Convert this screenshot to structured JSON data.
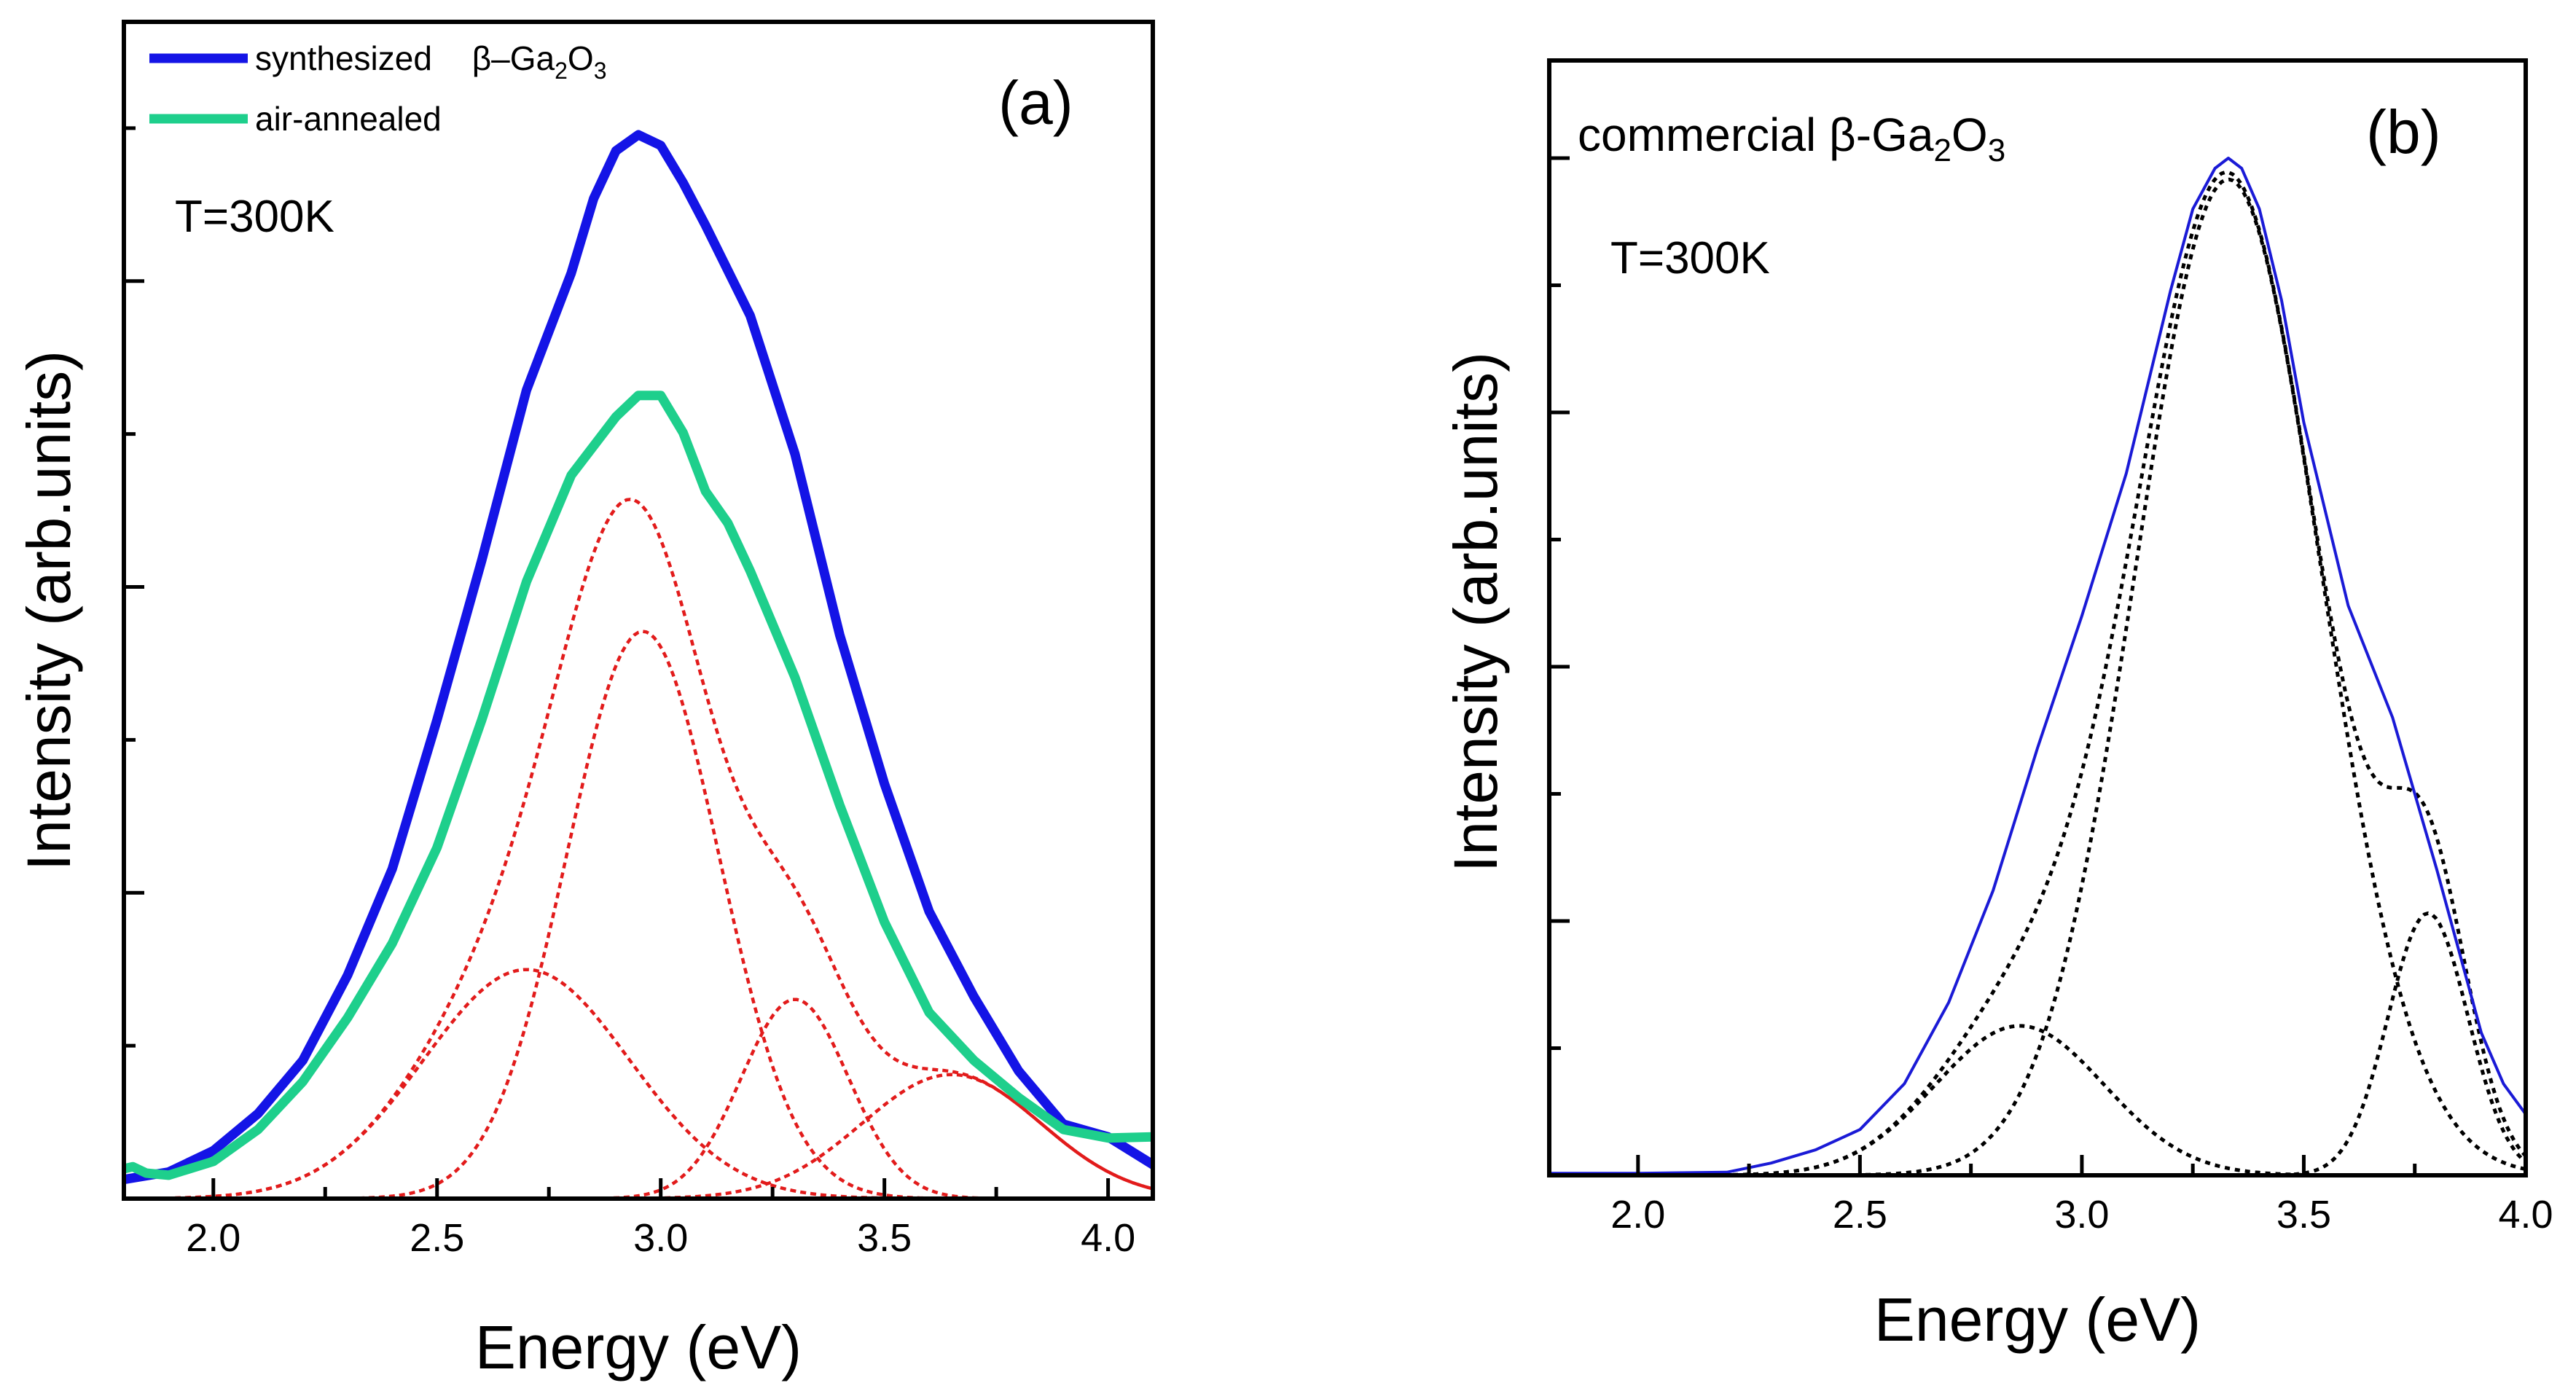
{
  "chart_data": [
    {
      "panel": "(a)",
      "type": "line",
      "xlabel": "Energy (eV)",
      "ylabel": "Intensity (arb.units)",
      "xlim": [
        1.8,
        4.1
      ],
      "ylim": [
        0,
        1.0
      ],
      "xticks": [
        2.0,
        2.5,
        3.0,
        3.5,
        4.0
      ],
      "xtick_labels": [
        "2.0",
        "2.5",
        "3.0",
        "3.5",
        "4.0"
      ],
      "yticks_unlabeled": true,
      "temperature_label": "T=300K",
      "legend": [
        {
          "label": "synthesized",
          "formula": [
            "β–Ga",
            "2",
            "O",
            "3"
          ],
          "color": "#1414e6"
        },
        {
          "label": "air-annealed",
          "color": "#1ecf8c"
        }
      ],
      "series": [
        {
          "name": "synthesized β–Ga2O3",
          "style": "solid",
          "color": "#1414e6",
          "x": [
            1.8,
            1.9,
            2.0,
            2.1,
            2.2,
            2.3,
            2.4,
            2.5,
            2.6,
            2.7,
            2.8,
            2.85,
            2.9,
            2.95,
            3.0,
            3.05,
            3.1,
            3.2,
            3.3,
            3.4,
            3.5,
            3.6,
            3.7,
            3.8,
            3.9,
            4.0,
            4.1
          ],
          "y": [
            0.018,
            0.025,
            0.045,
            0.08,
            0.13,
            0.21,
            0.31,
            0.45,
            0.6,
            0.76,
            0.87,
            0.94,
            0.985,
            1.0,
            0.99,
            0.955,
            0.915,
            0.83,
            0.7,
            0.53,
            0.39,
            0.27,
            0.19,
            0.12,
            0.07,
            0.058,
            0.032
          ]
        },
        {
          "name": "air-annealed",
          "style": "solid",
          "color": "#1ecf8c",
          "x": [
            1.8,
            1.82,
            1.85,
            1.9,
            2.0,
            2.1,
            2.2,
            2.3,
            2.4,
            2.5,
            2.6,
            2.7,
            2.8,
            2.9,
            2.95,
            3.0,
            3.05,
            3.1,
            3.15,
            3.2,
            3.3,
            3.4,
            3.5,
            3.6,
            3.7,
            3.8,
            3.9,
            4.0,
            4.1
          ],
          "y": [
            0.028,
            0.03,
            0.024,
            0.022,
            0.035,
            0.065,
            0.11,
            0.17,
            0.24,
            0.33,
            0.45,
            0.58,
            0.68,
            0.735,
            0.755,
            0.755,
            0.72,
            0.665,
            0.635,
            0.59,
            0.49,
            0.37,
            0.26,
            0.175,
            0.13,
            0.095,
            0.065,
            0.057,
            0.058
          ]
        },
        {
          "name": "fit envelope",
          "style": "dotted",
          "color": "#e21b1b",
          "gaussian": {
            "amplitudes": [
              0.2153,
              0.5332,
              0.1873,
              0.1166
            ],
            "centers": [
              2.7,
              2.96,
              3.3,
              3.65
            ],
            "sigmas": [
              0.23,
              0.17,
              0.12,
              0.2
            ]
          }
        },
        {
          "name": "Gaussian peak 1",
          "style": "dotted",
          "color": "#e21b1b",
          "gaussian": {
            "amplitude": 0.2153,
            "center": 2.7,
            "sigma": 0.23
          }
        },
        {
          "name": "Gaussian peak 2",
          "style": "dotted",
          "color": "#e21b1b",
          "gaussian": {
            "amplitude": 0.5332,
            "center": 2.96,
            "sigma": 0.17
          }
        },
        {
          "name": "Gaussian peak 3",
          "style": "dotted",
          "color": "#e21b1b",
          "gaussian": {
            "amplitude": 0.1873,
            "center": 3.3,
            "sigma": 0.12
          }
        },
        {
          "name": "Gaussian peak 4",
          "style": "dotted",
          "color": "#e21b1b",
          "gaussian": {
            "amplitude": 0.1166,
            "center": 3.65,
            "sigma": 0.2
          }
        }
      ]
    },
    {
      "panel": "(b)",
      "type": "line",
      "xlabel": "Energy (eV)",
      "ylabel": "Intensity (arb.units)",
      "xlim": [
        1.8,
        4.0
      ],
      "ylim": [
        0,
        1.0
      ],
      "xticks": [
        2.0,
        2.5,
        3.0,
        3.5,
        4.0
      ],
      "xtick_labels": [
        "2.0",
        "2.5",
        "3.0",
        "3.5",
        "4.0"
      ],
      "yticks_unlabeled": true,
      "temperature_label": "T=300K",
      "title": [
        "commercial β-Ga",
        "2",
        "O",
        "3"
      ],
      "series": [
        {
          "name": "commercial β-Ga2O3",
          "style": "solid",
          "color": "#1a1ad6",
          "x": [
            1.8,
            2.0,
            2.2,
            2.3,
            2.4,
            2.5,
            2.6,
            2.7,
            2.8,
            2.9,
            3.0,
            3.1,
            3.2,
            3.25,
            3.3,
            3.33,
            3.36,
            3.4,
            3.45,
            3.5,
            3.6,
            3.7,
            3.8,
            3.85,
            3.9,
            3.95,
            4.0
          ],
          "y": [
            0.002,
            0.002,
            0.003,
            0.012,
            0.025,
            0.045,
            0.09,
            0.17,
            0.28,
            0.42,
            0.55,
            0.69,
            0.87,
            0.95,
            0.99,
            1.0,
            0.99,
            0.95,
            0.86,
            0.74,
            0.56,
            0.45,
            0.3,
            0.22,
            0.14,
            0.09,
            0.06
          ]
        },
        {
          "name": "fit envelope",
          "style": "dotted",
          "color": "#000000",
          "gaussian": {
            "amplitudes": [
              0.1469,
              0.9791,
              0.2576
            ],
            "centers": [
              2.86,
              3.33,
              3.78
            ],
            "sigmas": [
              0.19,
              0.21,
              0.09
            ]
          }
        },
        {
          "name": "Gaussian peak 1",
          "style": "dotted",
          "color": "#000000",
          "gaussian": {
            "amplitude": 0.1469,
            "center": 2.86,
            "sigma": 0.19
          }
        },
        {
          "name": "Gaussian peak 2",
          "style": "dotted",
          "color": "#000000",
          "gaussian": {
            "amplitude": 0.9791,
            "center": 3.33,
            "sigma": 0.21
          }
        },
        {
          "name": "Gaussian peak 3",
          "style": "dotted",
          "color": "#000000",
          "gaussian": {
            "amplitude": 0.2576,
            "center": 3.78,
            "sigma": 0.09
          }
        }
      ]
    }
  ]
}
